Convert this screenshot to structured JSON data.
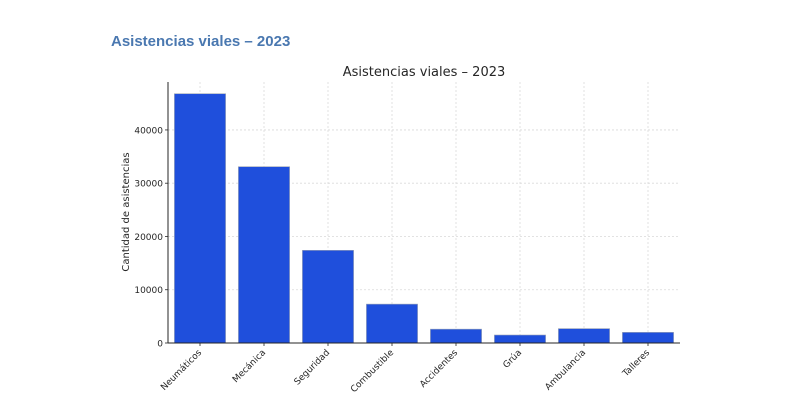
{
  "page": {
    "heading": "Asistencias viales – 2023"
  },
  "colors": {
    "heading": "#4a78b0",
    "bar_fill": "#1f4fdc",
    "bar_edge": "#9aa3b5",
    "grid": "#d9d9d9",
    "axis": "#262626"
  },
  "chart_data": {
    "type": "bar",
    "title": "Asistencias viales – 2023",
    "xlabel": "",
    "ylabel": "Cantidad de asistencias",
    "categories": [
      "Neumáticos",
      "Mecánica",
      "Seguridad",
      "Combustible",
      "Accidentes",
      "Grúa",
      "Ambulancia",
      "Talleres"
    ],
    "values": [
      46800,
      33100,
      17400,
      7300,
      2600,
      1500,
      2700,
      2000
    ],
    "ylim": [
      0,
      49000
    ],
    "yticks": [
      0,
      10000,
      20000,
      30000,
      40000
    ],
    "grid": true,
    "x_tick_rotation": "45 degrees",
    "legend": "none"
  }
}
